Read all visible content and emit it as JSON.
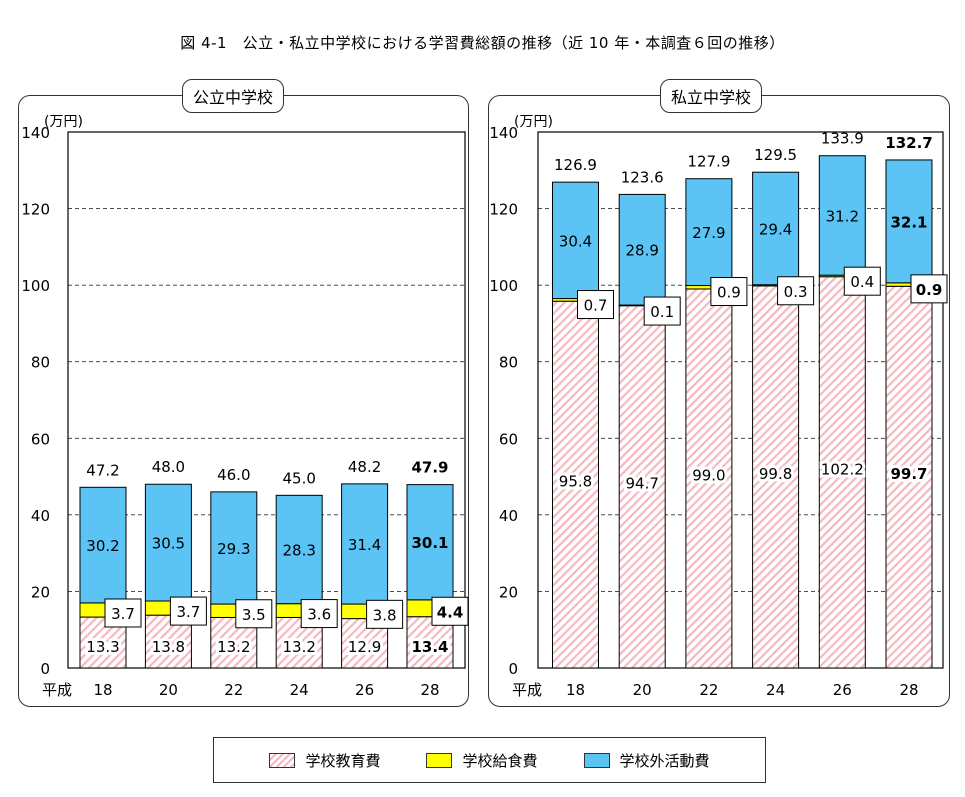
{
  "page_title": "図 4-1　公立・私立中学校における学習費総額の推移（近 10 年・本調査６回の推移）",
  "colors": {
    "education": "#f6b8bf",
    "lunch": "#ffff00",
    "extracurricular": "#5bc4f5",
    "grid": "#333333"
  },
  "legend": {
    "education": "学校教育費",
    "lunch": "学校給食費",
    "extracurricular": "学校外活動費"
  },
  "chart_data": [
    {
      "type": "bar",
      "stacked": true,
      "title": "公立中学校",
      "ylabel": "(万円)",
      "xlabel": "平成",
      "ylim": [
        0,
        140
      ],
      "yticks": [
        0,
        20,
        40,
        60,
        80,
        100,
        120,
        140
      ],
      "grid": true,
      "categories": [
        "18",
        "20",
        "22",
        "24",
        "26",
        "28"
      ],
      "series": [
        {
          "name": "学校教育費",
          "values": [
            13.3,
            13.8,
            13.2,
            13.2,
            12.9,
            13.4
          ]
        },
        {
          "name": "学校給食費",
          "values": [
            3.7,
            3.7,
            3.5,
            3.6,
            3.8,
            4.4
          ]
        },
        {
          "name": "学校外活動費",
          "values": [
            30.2,
            30.5,
            29.3,
            28.3,
            31.4,
            30.1
          ]
        }
      ],
      "totals": [
        47.2,
        48.0,
        46.0,
        45.0,
        48.2,
        47.9
      ],
      "labels": {
        "education": [
          "13.3",
          "13.8",
          "13.2",
          "13.2",
          "12.9",
          "13.4"
        ],
        "lunch": [
          "3.7",
          "3.7",
          "3.5",
          "3.6",
          "3.8",
          "4.4"
        ],
        "extracurricular": [
          "30.2",
          "30.5",
          "29.3",
          "28.3",
          "31.4",
          "30.1"
        ],
        "totals": [
          "47.2",
          "48.0",
          "46.0",
          "45.0",
          "48.2",
          "47.9"
        ]
      },
      "bold_categories": [
        "28"
      ]
    },
    {
      "type": "bar",
      "stacked": true,
      "title": "私立中学校",
      "ylabel": "(万円)",
      "xlabel": "平成",
      "ylim": [
        0,
        140
      ],
      "yticks": [
        0,
        20,
        40,
        60,
        80,
        100,
        120,
        140
      ],
      "grid": true,
      "categories": [
        "18",
        "20",
        "22",
        "24",
        "26",
        "28"
      ],
      "series": [
        {
          "name": "学校教育費",
          "values": [
            95.8,
            94.7,
            99.0,
            99.8,
            102.2,
            99.7
          ]
        },
        {
          "name": "学校給食費",
          "values": [
            0.7,
            0.1,
            0.9,
            0.3,
            0.4,
            0.9
          ]
        },
        {
          "name": "学校外活動費",
          "values": [
            30.4,
            28.9,
            27.9,
            29.4,
            31.2,
            32.1
          ]
        }
      ],
      "totals": [
        126.9,
        123.6,
        127.9,
        129.5,
        133.9,
        132.7
      ],
      "labels": {
        "education": [
          "95.8",
          "94.7",
          "99.0",
          "99.8",
          "102.2",
          "99.7"
        ],
        "lunch": [
          "0.7",
          "0.1",
          "0.9",
          "0.3",
          "0.4",
          "0.9"
        ],
        "extracurricular": [
          "30.4",
          "28.9",
          "27.9",
          "29.4",
          "31.2",
          "32.1"
        ],
        "totals": [
          "126.9",
          "123.6",
          "127.9",
          "129.5",
          "133.9",
          "132.7"
        ]
      },
      "bold_categories": [
        "28"
      ]
    }
  ]
}
